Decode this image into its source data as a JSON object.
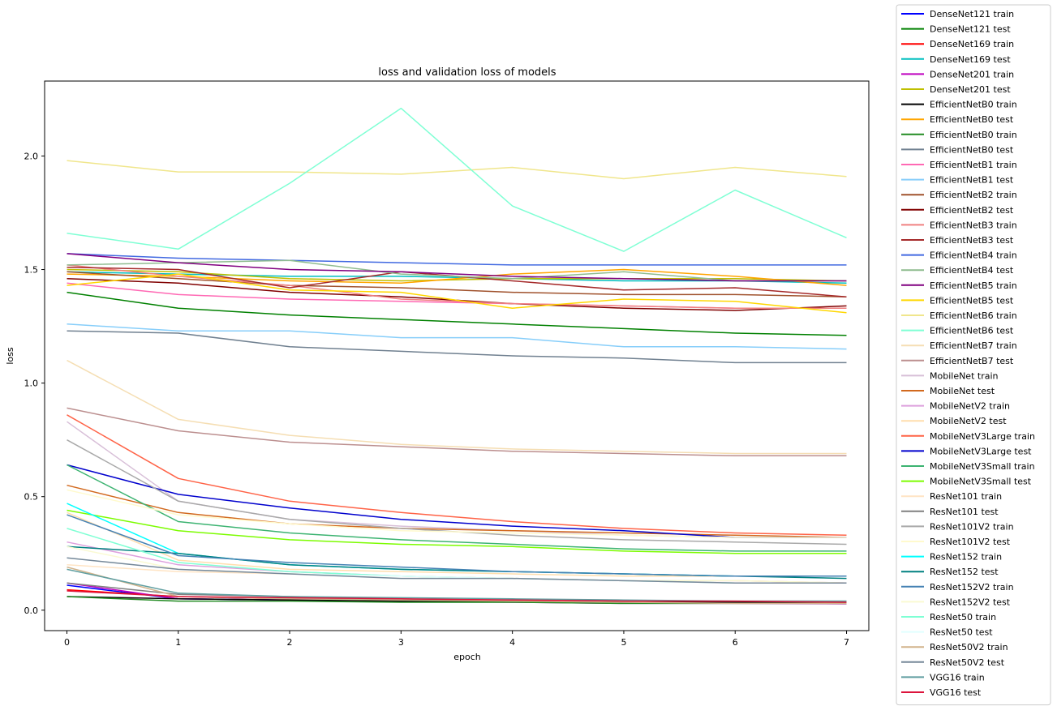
{
  "chart_data": {
    "type": "line",
    "title": "loss and validation loss of models",
    "xlabel": "epoch",
    "ylabel": "loss",
    "xlim": [
      -0.2,
      7.2
    ],
    "ylim": [
      -0.09,
      2.33
    ],
    "x": [
      0,
      1,
      2,
      3,
      4,
      5,
      6,
      7
    ],
    "xticks": [
      "0",
      "1",
      "2",
      "3",
      "4",
      "5",
      "6",
      "7"
    ],
    "yticks": [
      "0.0",
      "0.5",
      "1.0",
      "1.5",
      "2.0"
    ],
    "ytick_values": [
      0.0,
      0.5,
      1.0,
      1.5,
      2.0
    ],
    "grid": false,
    "legend_position": "outside-right",
    "series": [
      {
        "name": "DenseNet121 train",
        "color": "#0000ff",
        "values": [
          0.11,
          0.05,
          0.045,
          0.04,
          0.04,
          0.035,
          0.035,
          0.033
        ]
      },
      {
        "name": "DenseNet121 test",
        "color": "#008000",
        "values": [
          1.4,
          1.33,
          1.3,
          1.28,
          1.26,
          1.24,
          1.22,
          1.21
        ]
      },
      {
        "name": "DenseNet169 train",
        "color": "#ff0000",
        "values": [
          0.09,
          0.06,
          0.05,
          0.045,
          0.04,
          0.04,
          0.035,
          0.035
        ]
      },
      {
        "name": "DenseNet169 test",
        "color": "#00bfbf",
        "values": [
          1.49,
          1.48,
          1.47,
          1.47,
          1.46,
          1.45,
          1.45,
          1.44
        ]
      },
      {
        "name": "DenseNet201 train",
        "color": "#bf00bf",
        "values": [
          0.12,
          0.05,
          0.045,
          0.04,
          0.035,
          0.03,
          0.03,
          0.028
        ]
      },
      {
        "name": "DenseNet201 test",
        "color": "#bfbf00",
        "values": [
          1.5,
          1.49,
          1.46,
          1.45,
          1.46,
          1.46,
          1.46,
          1.45
        ]
      },
      {
        "name": "EfficientNetB0 train",
        "color": "#000000",
        "values": [
          0.06,
          0.05,
          0.045,
          0.04,
          0.038,
          0.036,
          0.035,
          0.034
        ]
      },
      {
        "name": "EfficientNetB0 test",
        "color": "#ffa500",
        "values": [
          1.48,
          1.47,
          1.45,
          1.44,
          1.48,
          1.5,
          1.47,
          1.43
        ]
      },
      {
        "name": "EfficientNetB0 train",
        "color": "#228b22",
        "values": [
          0.06,
          0.04,
          0.04,
          0.035,
          0.035,
          0.03,
          0.03,
          0.03
        ]
      },
      {
        "name": "EfficientNetB0 test",
        "color": "#708090",
        "values": [
          1.23,
          1.22,
          1.16,
          1.14,
          1.12,
          1.11,
          1.09,
          1.09
        ]
      },
      {
        "name": "EfficientNetB1 train",
        "color": "#ff69b4",
        "values": [
          1.44,
          1.39,
          1.37,
          1.36,
          1.35,
          1.34,
          1.33,
          1.33
        ]
      },
      {
        "name": "EfficientNetB1 test",
        "color": "#87cefa",
        "values": [
          1.26,
          1.23,
          1.23,
          1.2,
          1.2,
          1.16,
          1.16,
          1.15
        ]
      },
      {
        "name": "EfficientNetB2 train",
        "color": "#a0522d",
        "values": [
          1.49,
          1.46,
          1.43,
          1.42,
          1.4,
          1.39,
          1.39,
          1.38
        ]
      },
      {
        "name": "EfficientNetB2 test",
        "color": "#800000",
        "values": [
          1.46,
          1.44,
          1.4,
          1.38,
          1.35,
          1.33,
          1.32,
          1.34
        ]
      },
      {
        "name": "EfficientNetB3 train",
        "color": "#f08080",
        "values": [
          1.52,
          1.47,
          1.43,
          1.37,
          1.35,
          1.34,
          1.33,
          1.33
        ]
      },
      {
        "name": "EfficientNetB3 test",
        "color": "#a52a2a",
        "values": [
          1.51,
          1.5,
          1.42,
          1.49,
          1.45,
          1.41,
          1.42,
          1.38
        ]
      },
      {
        "name": "EfficientNetB4 train",
        "color": "#4169e1",
        "values": [
          1.57,
          1.55,
          1.54,
          1.53,
          1.52,
          1.52,
          1.52,
          1.52
        ]
      },
      {
        "name": "EfficientNetB4 test",
        "color": "#8fbc8f",
        "values": [
          1.52,
          1.53,
          1.54,
          1.48,
          1.46,
          1.49,
          1.45,
          1.45
        ]
      },
      {
        "name": "EfficientNetB5 train",
        "color": "#800080",
        "values": [
          1.57,
          1.53,
          1.5,
          1.49,
          1.47,
          1.46,
          1.45,
          1.45
        ]
      },
      {
        "name": "EfficientNetB5 test",
        "color": "#ffd700",
        "values": [
          1.43,
          1.48,
          1.41,
          1.4,
          1.33,
          1.37,
          1.36,
          1.31
        ]
      },
      {
        "name": "EfficientNetB6 train",
        "color": "#f0e68c",
        "values": [
          1.98,
          1.93,
          1.93,
          1.92,
          1.95,
          1.9,
          1.95,
          1.91
        ]
      },
      {
        "name": "EfficientNetB6 test",
        "color": "#7fffd4",
        "values": [
          1.66,
          1.59,
          1.88,
          2.21,
          1.78,
          1.58,
          1.85,
          1.64
        ]
      },
      {
        "name": "EfficientNetB7 train",
        "color": "#f5deb3",
        "values": [
          1.1,
          0.84,
          0.77,
          0.73,
          0.71,
          0.7,
          0.69,
          0.69
        ]
      },
      {
        "name": "EfficientNetB7 test",
        "color": "#bc8f8f",
        "values": [
          0.89,
          0.79,
          0.74,
          0.72,
          0.7,
          0.69,
          0.68,
          0.68
        ]
      },
      {
        "name": "MobileNet train",
        "color": "#d8bfd8",
        "values": [
          0.83,
          0.48,
          0.4,
          0.37,
          0.35,
          0.33,
          0.32,
          0.32
        ]
      },
      {
        "name": "MobileNet test",
        "color": "#d2691e",
        "values": [
          0.55,
          0.43,
          0.38,
          0.36,
          0.35,
          0.34,
          0.33,
          0.32
        ]
      },
      {
        "name": "MobileNetV2 train",
        "color": "#dda0dd",
        "values": [
          0.3,
          0.2,
          0.17,
          0.15,
          0.14,
          0.13,
          0.13,
          0.12
        ]
      },
      {
        "name": "MobileNetV2 test",
        "color": "#ffdead",
        "values": [
          0.43,
          0.22,
          0.18,
          0.17,
          0.16,
          0.15,
          0.15,
          0.15
        ]
      },
      {
        "name": "MobileNetV3Large train",
        "color": "#ff6347",
        "values": [
          0.86,
          0.58,
          0.48,
          0.43,
          0.39,
          0.36,
          0.34,
          0.33
        ]
      },
      {
        "name": "MobileNetV3Large test",
        "color": "#0000cd",
        "values": [
          0.64,
          0.51,
          0.45,
          0.4,
          0.37,
          0.35,
          0.32,
          0.32
        ]
      },
      {
        "name": "MobileNetV3Small train",
        "color": "#3cb371",
        "values": [
          0.64,
          0.39,
          0.34,
          0.31,
          0.29,
          0.27,
          0.26,
          0.26
        ]
      },
      {
        "name": "MobileNetV3Small test",
        "color": "#7cfc00",
        "values": [
          0.44,
          0.35,
          0.31,
          0.29,
          0.28,
          0.26,
          0.25,
          0.25
        ]
      },
      {
        "name": "ResNet101 train",
        "color": "#ffe4c4",
        "values": [
          0.2,
          0.17,
          0.16,
          0.15,
          0.14,
          0.13,
          0.13,
          0.12
        ]
      },
      {
        "name": "ResNet101 test",
        "color": "#808080",
        "values": [
          0.12,
          0.07,
          0.06,
          0.05,
          0.045,
          0.04,
          0.04,
          0.04
        ]
      },
      {
        "name": "ResNet101V2 train",
        "color": "#a9a9a9",
        "values": [
          0.75,
          0.48,
          0.4,
          0.36,
          0.33,
          0.31,
          0.3,
          0.29
        ]
      },
      {
        "name": "ResNet101V2 test",
        "color": "#fffacd",
        "values": [
          0.53,
          0.42,
          0.38,
          0.35,
          0.34,
          0.33,
          0.32,
          0.32
        ]
      },
      {
        "name": "ResNet152 train",
        "color": "#00ffff",
        "values": [
          0.47,
          0.25,
          0.2,
          0.18,
          0.17,
          0.16,
          0.15,
          0.15
        ]
      },
      {
        "name": "ResNet152 test",
        "color": "#008080",
        "values": [
          0.28,
          0.25,
          0.2,
          0.18,
          0.17,
          0.16,
          0.15,
          0.14
        ]
      },
      {
        "name": "ResNet152V2 train",
        "color": "#4682b4",
        "values": [
          0.42,
          0.24,
          0.21,
          0.19,
          0.17,
          0.16,
          0.15,
          0.15
        ]
      },
      {
        "name": "ResNet152V2 test",
        "color": "#fafad2",
        "values": [
          0.28,
          0.18,
          0.16,
          0.15,
          0.14,
          0.13,
          0.13,
          0.12
        ]
      },
      {
        "name": "ResNet50 train",
        "color": "#7fffd4",
        "values": [
          0.36,
          0.21,
          0.17,
          0.15,
          0.14,
          0.13,
          0.12,
          0.12
        ]
      },
      {
        "name": "ResNet50 test",
        "color": "#e0ffff",
        "values": [
          0.23,
          0.18,
          0.16,
          0.15,
          0.14,
          0.13,
          0.12,
          0.12
        ]
      },
      {
        "name": "ResNet50V2 train",
        "color": "#d2b48c",
        "values": [
          0.19,
          0.06,
          0.05,
          0.045,
          0.04,
          0.035,
          0.03,
          0.03
        ]
      },
      {
        "name": "ResNet50V2 test",
        "color": "#778899",
        "values": [
          0.23,
          0.18,
          0.16,
          0.14,
          0.14,
          0.13,
          0.12,
          0.12
        ]
      },
      {
        "name": "VGG16 train",
        "color": "#5f9ea0",
        "values": [
          0.18,
          0.075,
          0.06,
          0.055,
          0.05,
          0.045,
          0.04,
          0.04
        ]
      },
      {
        "name": "VGG16 test",
        "color": "#dc143c",
        "values": [
          0.085,
          0.06,
          0.055,
          0.05,
          0.045,
          0.04,
          0.04,
          0.035
        ]
      }
    ]
  }
}
